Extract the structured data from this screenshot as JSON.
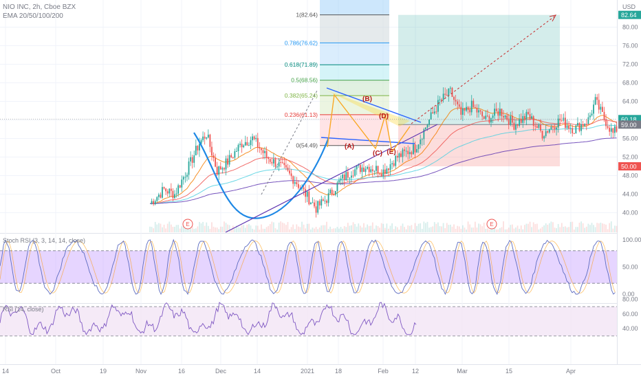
{
  "header": {
    "symbol_line": "NIO INC, 2h, Cboe BZX",
    "ema_label": "EMA 20/50/100/200",
    "currency": "USD"
  },
  "colors": {
    "up": "#26a69a",
    "down": "#ef5350",
    "blue_line": "#2962ff",
    "cup_line": "#1e88e5",
    "ema20": "#f57c00",
    "ema50": "#ef5350",
    "ema100": "#4dd0e1",
    "ema200": "#5e35b1",
    "profit_zone": "#26a69a",
    "loss_zone": "#ef5350",
    "stoch_fill": "#d1b3ff",
    "rsi_fill": "#f3e5f5",
    "wave_labels": "#b71c1c"
  },
  "chart_data": [
    {
      "type": "candlestick",
      "symbol": "NIO INC",
      "interval": "2h",
      "exchange": "Cboe BZX",
      "x_tick_labels": [
        "14",
        "Oct",
        "19",
        "Nov",
        "16",
        "Dec",
        "14",
        "2021",
        "18",
        "Feb",
        "12",
        "Mar",
        "15",
        "Apr"
      ],
      "y_tick_labels": [
        "40.00",
        "44.00",
        "48.00",
        "52.00",
        "56.00",
        "60.00",
        "64.00",
        "68.00",
        "72.00",
        "76.00",
        "80.00"
      ],
      "ylim": [
        36.5,
        86
      ],
      "price_badges": [
        {
          "value": "82.64",
          "color": "#26a69a"
        },
        {
          "value": "60.18",
          "color": "#26a69a"
        },
        {
          "value": "59.00",
          "color": "#787b86"
        },
        {
          "value": "50.00",
          "color": "#ef5350"
        }
      ],
      "fibonacci_levels": [
        {
          "label": "1(82.64)",
          "value": 82.64,
          "color": "#555555"
        },
        {
          "label": "0.786(76.62)",
          "value": 76.62,
          "color": "#2196f3"
        },
        {
          "label": "0.618(71.89)",
          "value": 71.89,
          "color": "#00897b"
        },
        {
          "label": "0.5(68.56)",
          "value": 68.56,
          "color": "#43a047"
        },
        {
          "label": "0.382(65.24)",
          "value": 65.24,
          "color": "#7cb342"
        },
        {
          "label": "0.236(61.13)",
          "value": 61.13,
          "color": "#e53935"
        },
        {
          "label": "0(54.49)",
          "value": 54.49,
          "color": "#555555"
        }
      ],
      "wave_labels": [
        "(A)",
        "(B)",
        "(C)",
        "(D)",
        "(E)"
      ],
      "event_markers": [
        "E",
        "E"
      ],
      "position": {
        "entry": 59.0,
        "target": 82.64,
        "stop": 50.0
      },
      "moving_averages": [
        "EMA 20",
        "EMA 50",
        "EMA 100",
        "EMA 200"
      ]
    },
    {
      "type": "line",
      "title": "Stoch RSI (3, 3, 14, 14, close)",
      "y_tick_labels": [
        "100.00",
        "50.00",
        "0.00"
      ],
      "ylim": [
        0,
        100
      ],
      "band": [
        20,
        80
      ]
    },
    {
      "type": "line",
      "title": "RSI (14, close)",
      "y_tick_labels": [
        "80.00",
        "60.00",
        "40.00"
      ],
      "ylim": [
        30,
        90
      ],
      "band": [
        30,
        70
      ]
    }
  ]
}
